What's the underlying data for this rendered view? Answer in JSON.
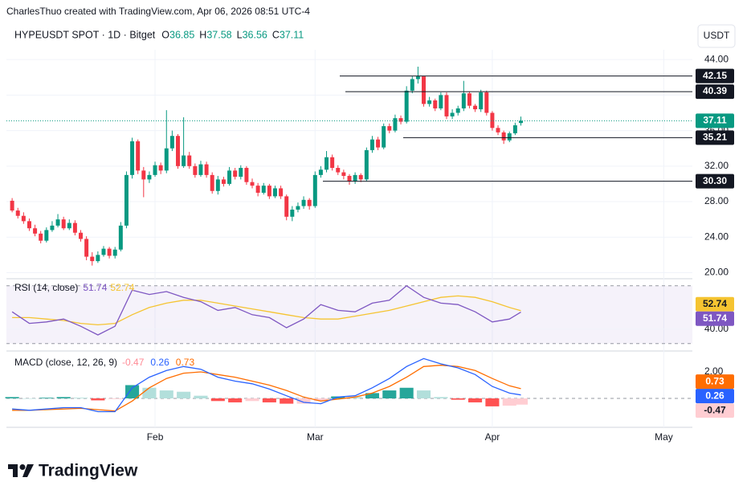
{
  "attribution": "CharlesThuo created with TradingView.com, Apr 06, 2026 08:51 UTC-4",
  "footer": {
    "brand": "TradingView"
  },
  "chart_data": {
    "type": "candlestick",
    "title": "HYPEUSDT SPOT · 1D · Bitget",
    "currency": "USDT",
    "ohlc_keys": [
      "O",
      "H",
      "L",
      "C"
    ],
    "open": [
      28.1,
      27.0,
      26.4,
      25.8,
      25.0,
      24.4,
      23.6,
      24.8,
      25.3,
      26.0,
      25.0,
      25.6,
      24.5,
      23.8,
      21.8,
      21.3,
      22.0,
      22.7,
      21.9,
      22.6,
      25.3,
      31.0,
      34.8,
      31.5,
      30.5,
      31.0,
      32.1,
      31.5,
      34.0,
      35.4,
      32.0,
      33.2,
      32.0,
      31.0,
      32.2,
      31.0,
      29.2,
      30.5,
      30.0,
      31.5,
      30.8,
      31.8,
      30.2,
      29.8,
      29.0,
      29.8,
      28.6,
      29.5,
      28.6,
      26.3,
      27.1,
      27.5,
      28.2,
      27.5,
      31.0,
      31.6,
      33.0,
      31.8,
      31.3,
      30.9,
      30.3,
      31.0,
      30.5,
      33.8,
      35.0,
      34.1,
      36.5,
      36.0,
      37.4,
      37.0,
      40.5,
      41.8,
      42.1,
      39.0,
      39.4,
      38.5,
      40.0,
      37.6,
      38.0,
      38.5,
      40.2,
      38.8,
      38.4,
      40.3,
      38.0,
      36.3,
      35.8,
      34.9,
      35.7,
      36.85
    ],
    "high": [
      28.4,
      27.3,
      26.8,
      26.1,
      25.4,
      24.7,
      25.1,
      25.8,
      26.6,
      26.3,
      26.0,
      25.9,
      24.8,
      24.1,
      22.3,
      22.4,
      23.0,
      22.9,
      22.9,
      25.7,
      31.4,
      35.2,
      35.0,
      31.9,
      31.4,
      32.5,
      32.4,
      38.3,
      36.0,
      35.6,
      37.5,
      33.6,
      32.3,
      32.6,
      32.5,
      31.3,
      30.9,
      30.8,
      31.9,
      31.8,
      32.1,
      32.0,
      30.6,
      30.1,
      30.1,
      30.0,
      29.8,
      29.8,
      28.8,
      27.5,
      27.9,
      28.6,
      28.4,
      31.4,
      32.0,
      33.7,
      33.3,
      32.1,
      31.6,
      31.1,
      31.3,
      31.2,
      34.1,
      35.4,
      35.3,
      36.8,
      36.8,
      37.8,
      37.7,
      41.0,
      42.1,
      43.2,
      42.0,
      39.8,
      39.6,
      40.3,
      40.3,
      38.4,
      38.8,
      41.6,
      40.4,
      39.0,
      40.6,
      40.5,
      38.2,
      36.6,
      36.0,
      35.9,
      36.9,
      37.58
    ],
    "low": [
      26.8,
      26.1,
      25.5,
      24.7,
      24.1,
      23.3,
      23.4,
      24.6,
      25.1,
      24.8,
      24.8,
      24.2,
      23.5,
      21.4,
      20.8,
      21.1,
      21.8,
      21.6,
      21.6,
      22.4,
      25.0,
      30.6,
      31.1,
      28.5,
      30.1,
      30.8,
      31.1,
      31.2,
      33.7,
      31.7,
      31.8,
      31.7,
      30.7,
      30.8,
      30.7,
      28.9,
      28.8,
      29.7,
      29.8,
      30.5,
      30.5,
      29.9,
      29.5,
      28.6,
      28.8,
      28.3,
      28.4,
      28.3,
      25.9,
      25.8,
      26.8,
      27.2,
      27.1,
      27.3,
      30.7,
      31.3,
      31.5,
      31.0,
      30.5,
      29.9,
      30.0,
      30.2,
      30.3,
      33.5,
      33.8,
      33.9,
      35.7,
      35.8,
      36.7,
      36.8,
      40.2,
      41.3,
      38.7,
      38.7,
      38.2,
      38.3,
      37.3,
      37.3,
      37.7,
      38.2,
      38.5,
      38.1,
      38.1,
      37.7,
      36.0,
      35.5,
      34.5,
      34.7,
      35.5,
      36.56
    ],
    "close": [
      27.0,
      26.4,
      25.8,
      25.0,
      24.4,
      23.6,
      24.8,
      25.3,
      26.0,
      25.0,
      25.6,
      24.5,
      23.8,
      21.8,
      21.3,
      22.0,
      22.7,
      21.9,
      22.6,
      25.3,
      31.0,
      34.8,
      31.5,
      30.5,
      31.0,
      32.1,
      31.5,
      34.0,
      35.4,
      32.0,
      33.2,
      32.0,
      31.0,
      32.2,
      31.0,
      29.2,
      30.5,
      30.0,
      31.5,
      30.8,
      31.8,
      30.2,
      29.8,
      29.0,
      29.8,
      28.6,
      29.5,
      28.6,
      26.3,
      27.1,
      27.5,
      28.2,
      27.5,
      31.0,
      31.6,
      33.0,
      31.8,
      31.3,
      30.9,
      30.3,
      31.0,
      30.5,
      33.8,
      35.0,
      34.1,
      36.5,
      36.0,
      37.4,
      37.0,
      40.5,
      41.8,
      42.1,
      39.0,
      39.4,
      38.5,
      40.0,
      37.6,
      38.0,
      38.5,
      40.2,
      38.8,
      38.4,
      40.3,
      38.0,
      36.3,
      35.8,
      34.9,
      35.7,
      36.6,
      37.11
    ],
    "colors": {
      "up": "#089981",
      "down": "#f23645"
    },
    "xlim": [
      -1,
      119
    ],
    "xticks": [
      {
        "value": 25,
        "label": "Feb"
      },
      {
        "value": 53,
        "label": "Mar"
      },
      {
        "value": 84,
        "label": "Apr"
      },
      {
        "value": 114,
        "label": "May"
      }
    ],
    "ylim": [
      19.5,
      45.1
    ],
    "yticks": [
      {
        "value": 20,
        "label": "20.00"
      },
      {
        "value": 24,
        "label": "24.00"
      },
      {
        "value": 28,
        "label": "28.00"
      },
      {
        "value": 32,
        "label": "32.00"
      },
      {
        "value": 36,
        "label": "36.00"
      },
      {
        "value": 40,
        "label": "40.00"
      },
      {
        "value": 44,
        "label": "44.00"
      }
    ],
    "grid": true,
    "levels": [
      42.15,
      40.39,
      35.21,
      {
        "value": 30.3,
        "label": "30.30"
      }
    ],
    "rsi": {
      "title": "RSI (14, close)",
      "x": [
        0,
        3,
        6,
        9,
        12,
        15,
        18,
        21,
        24,
        27,
        30,
        33,
        36,
        39,
        42,
        45,
        48,
        51,
        54,
        57,
        60,
        63,
        66,
        69,
        72,
        75,
        78,
        81,
        84,
        87,
        89
      ],
      "values": [
        52,
        44,
        45,
        47,
        42,
        36,
        42,
        67,
        64,
        66,
        62,
        59,
        53,
        55,
        50,
        48,
        41,
        47,
        57,
        53,
        52,
        58,
        60,
        70,
        62,
        58,
        57,
        52,
        45,
        47,
        51.74
      ],
      "ma": [
        48,
        48,
        47,
        46,
        44,
        43,
        44,
        50,
        55,
        58,
        60,
        60,
        58,
        56,
        54,
        52,
        50,
        48,
        47,
        47,
        49,
        51,
        53,
        56,
        59,
        62,
        63,
        62,
        59,
        55,
        52.74
      ],
      "color": "#7e57c2",
      "ma_color": "#f5c431",
      "ylim": [
        26,
        73.2
      ],
      "yticks": [
        {
          "value": 40,
          "label": "40.00"
        }
      ],
      "bands": [
        30,
        70
      ]
    },
    "macd": {
      "title": "MACD (close, 12, 26, 9)",
      "x": [
        0,
        3,
        6,
        9,
        12,
        15,
        18,
        21,
        24,
        27,
        30,
        33,
        36,
        39,
        42,
        45,
        48,
        51,
        54,
        57,
        60,
        63,
        66,
        69,
        72,
        75,
        78,
        81,
        84,
        87,
        89
      ],
      "histogram": [
        0.1,
        0,
        0.05,
        0.1,
        0.05,
        -0.15,
        -0.05,
        1.0,
        0.8,
        0.6,
        0.5,
        0.2,
        -0.2,
        -0.3,
        -0.2,
        -0.3,
        -0.4,
        -0.4,
        -0.2,
        0.15,
        0.1,
        0.4,
        0.6,
        0.8,
        0.6,
        0.1,
        -0.1,
        -0.3,
        -0.6,
        -0.55,
        -0.47
      ],
      "macd": [
        -0.8,
        -0.9,
        -0.8,
        -0.7,
        -0.7,
        -1.0,
        -1.0,
        0.8,
        1.6,
        2.1,
        2.4,
        2.2,
        1.6,
        1.3,
        1.1,
        0.7,
        0.2,
        -0.3,
        -0.4,
        0.1,
        0.2,
        0.8,
        1.5,
        2.4,
        3.0,
        2.6,
        2.3,
        1.8,
        0.9,
        0.4,
        0.26
      ],
      "signal": [
        -0.9,
        -0.9,
        -0.85,
        -0.8,
        -0.75,
        -0.85,
        -0.95,
        -0.2,
        0.8,
        1.5,
        1.9,
        2.0,
        1.8,
        1.6,
        1.3,
        1.0,
        0.6,
        0.1,
        -0.2,
        -0.05,
        0.1,
        0.4,
        0.9,
        1.6,
        2.4,
        2.5,
        2.4,
        2.1,
        1.5,
        0.95,
        0.73
      ],
      "macd_color": "#2962ff",
      "signal_color": "#ff6d00",
      "histogram_color": "#ff8a95",
      "histogram_colors": [
        "#26a69a",
        "#b2dfdb",
        "#ffcdd2",
        "#ff5252"
      ],
      "ylim": [
        -2.06,
        3.39
      ],
      "yticks": [
        {
          "value": 2,
          "label": "2.00"
        }
      ],
      "zero": 0
    }
  }
}
